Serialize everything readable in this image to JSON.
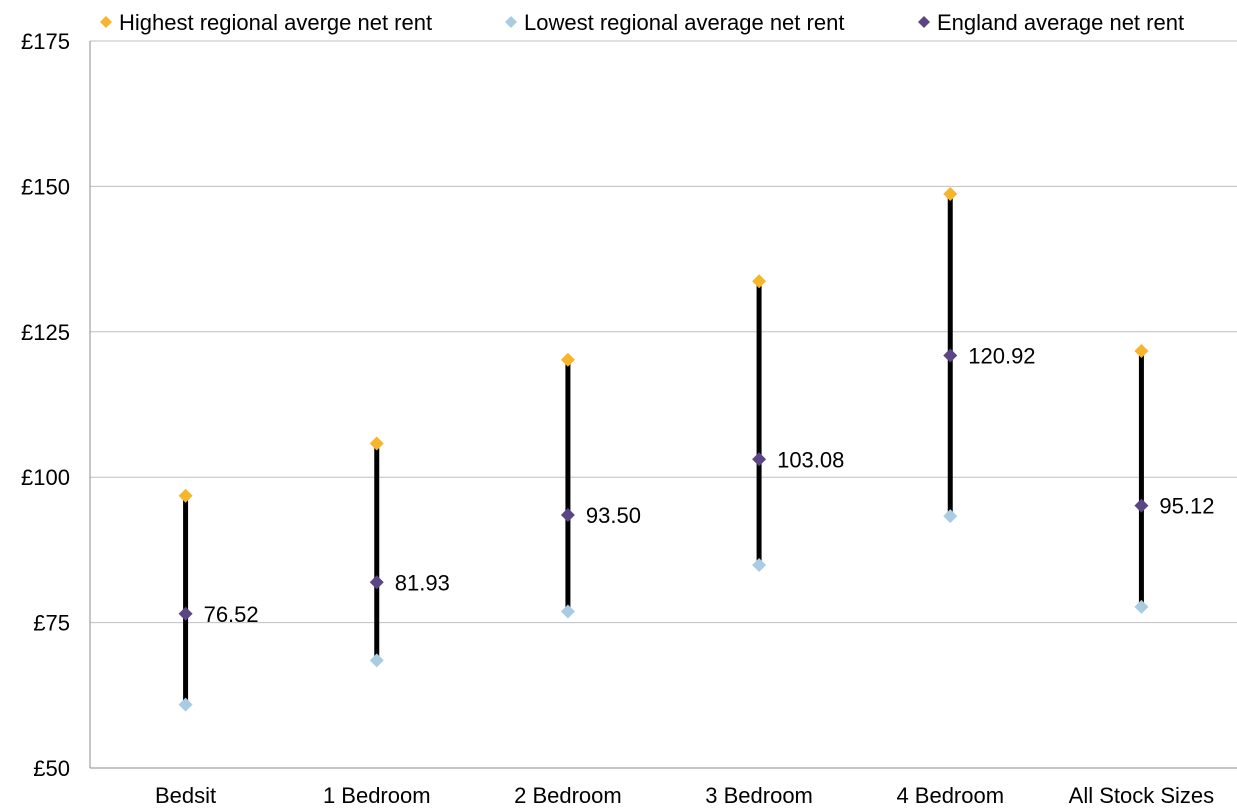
{
  "chart_data": {
    "type": "scatter",
    "title": "",
    "xlabel": "",
    "ylabel": "",
    "categories": [
      "Bedsit",
      "1 Bedroom",
      "2 Bedroom",
      "3 Bedroom",
      "4 Bedroom",
      "All Stock Sizes"
    ],
    "ylim": [
      50,
      175
    ],
    "y_ticks": [
      50,
      75,
      100,
      125,
      150,
      175
    ],
    "y_tick_labels": [
      "£50",
      "£75",
      "£100",
      "£125",
      "£150",
      "£175"
    ],
    "grid": true,
    "legend_position": "top",
    "series": [
      {
        "name": "Highest regional averge net rent",
        "color": "#F7B52C",
        "values": [
          96.8,
          105.8,
          120.2,
          133.7,
          148.7,
          121.7
        ]
      },
      {
        "name": "Lowest regional average net rent",
        "color": "#A9CCE3",
        "values": [
          60.9,
          68.5,
          76.9,
          84.9,
          93.3,
          77.7
        ]
      },
      {
        "name": "England average net rent",
        "color": "#5B4585",
        "values": [
          76.52,
          81.93,
          93.5,
          103.08,
          120.92,
          95.12
        ],
        "labels": [
          "76.52",
          "81.93",
          "93.50",
          "103.08",
          "120.92",
          "95.12"
        ]
      }
    ]
  }
}
